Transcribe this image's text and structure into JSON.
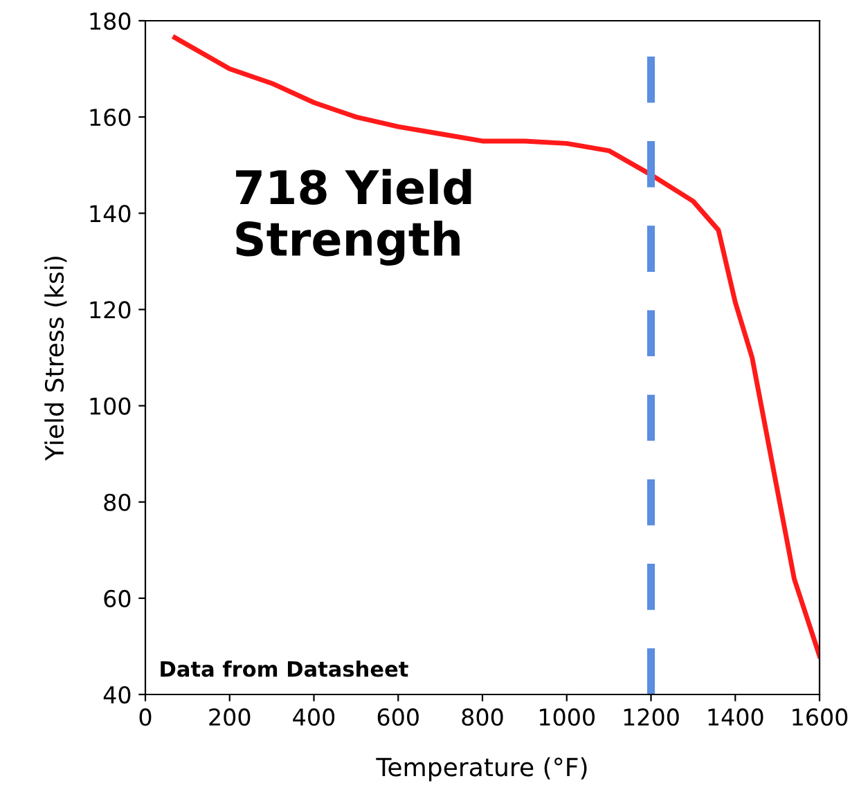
{
  "chart_data": {
    "type": "line",
    "xlabel": "Temperature (°F)",
    "ylabel": "Yield Stress (ksi)",
    "x": [
      70,
      200,
      300,
      400,
      500,
      600,
      700,
      800,
      900,
      1000,
      1100,
      1200,
      1300,
      1360,
      1400,
      1440,
      1540,
      1600
    ],
    "series": [
      {
        "color": "#ff1a1a",
        "values": [
          176.5,
          170,
          167,
          163,
          160,
          158,
          156.5,
          155,
          155,
          154.5,
          153,
          148,
          142.5,
          136.5,
          121.5,
          110,
          64,
          48
        ]
      }
    ],
    "xlim": [
      0,
      1600
    ],
    "xticks": [
      0,
      200,
      400,
      600,
      800,
      1000,
      1200,
      1400,
      1600
    ],
    "ylim": [
      40,
      180
    ],
    "yticks": [
      40,
      60,
      80,
      100,
      120,
      140,
      160,
      180
    ],
    "ref_lines": [
      {
        "axis": "x",
        "value": 1200,
        "color": "#5b8de0",
        "line_style": "dashed"
      }
    ],
    "annotations": [
      "718 Yield\nStrength",
      "Data from Datasheet"
    ],
    "grid": false,
    "legend": false,
    "marker": "none",
    "line_style": "solid"
  }
}
